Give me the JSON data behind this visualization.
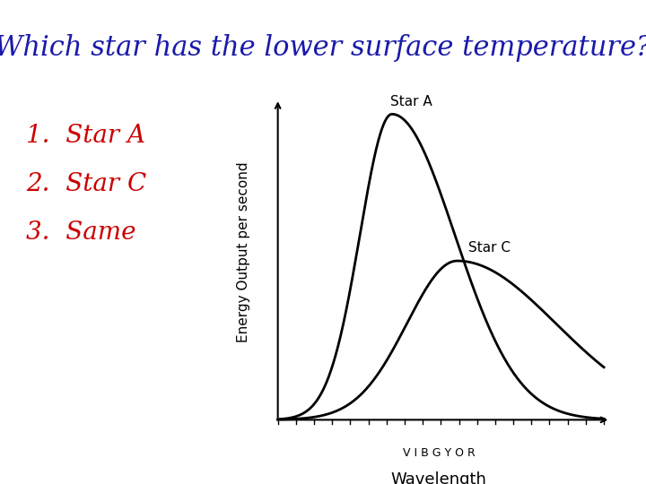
{
  "title": "Which star has the lower surface temperature?",
  "title_color": "#1a1aaa",
  "title_fontsize": 22,
  "choices": [
    "1.  Star A",
    "2.  Star C",
    "3.  Same"
  ],
  "choices_color": "#cc0000",
  "choices_fontsize": 20,
  "ylabel": "Energy Output per second",
  "xlabel": "Wavelength",
  "xlabel_fontsize": 13,
  "ylabel_fontsize": 11,
  "vibgyor_label": "V I B G Y O R",
  "star_a_peak": 0.35,
  "star_a_amplitude": 1.0,
  "star_c_peak": 0.55,
  "star_c_amplitude": 0.52,
  "curve_color": "#000000",
  "curve_lw": 2.0,
  "star_a_label": "Star A",
  "star_c_label": "Star C",
  "background_color": "#ffffff"
}
